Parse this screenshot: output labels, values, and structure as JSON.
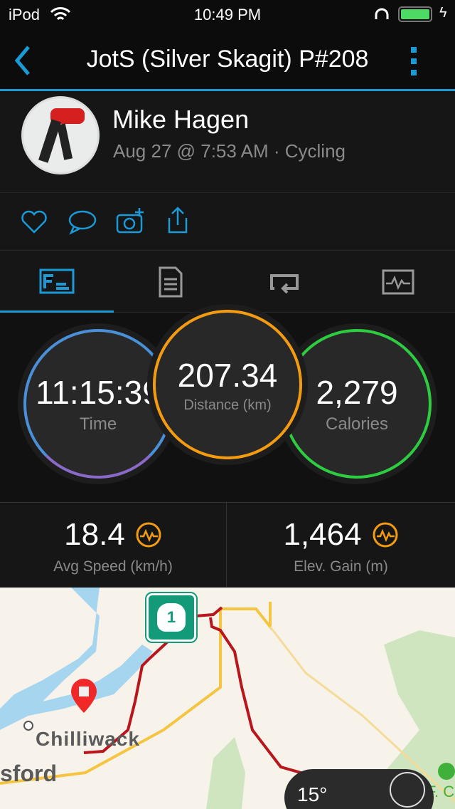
{
  "status_bar": {
    "device": "iPod",
    "time": "10:49 PM",
    "battery_color": "#4cd964"
  },
  "nav": {
    "title": "JotS (Silver Skagit) P#208",
    "accent": "#1a9ad6"
  },
  "profile": {
    "name": "Mike Hagen",
    "subtitle": "Aug 27 @ 7:53 AM · Cycling"
  },
  "actions": [
    "heart-icon",
    "comment-icon",
    "add-photo-icon",
    "share-icon"
  ],
  "tabs": [
    {
      "icon": "overview-icon",
      "active": true
    },
    {
      "icon": "details-icon"
    },
    {
      "icon": "laps-icon"
    },
    {
      "icon": "charts-icon"
    }
  ],
  "stats": {
    "time": {
      "value": "11:15:39",
      "label": "Time",
      "color": "#4a90d9"
    },
    "distance": {
      "value": "207.34",
      "label": "Distance (km)",
      "color": "#f39c12"
    },
    "calories": {
      "value": "2,279",
      "label": "Calories",
      "color": "#2ecc40"
    }
  },
  "metrics": [
    {
      "value": "18.4",
      "label": "Avg Speed (km/h)"
    },
    {
      "value": "1,464",
      "label": "Elev. Gain (m)"
    }
  ],
  "map": {
    "labels": {
      "city1": "Chilliwack",
      "city2": "sford",
      "park": "F. C",
      "highway": "1",
      "temp": "15°"
    }
  }
}
